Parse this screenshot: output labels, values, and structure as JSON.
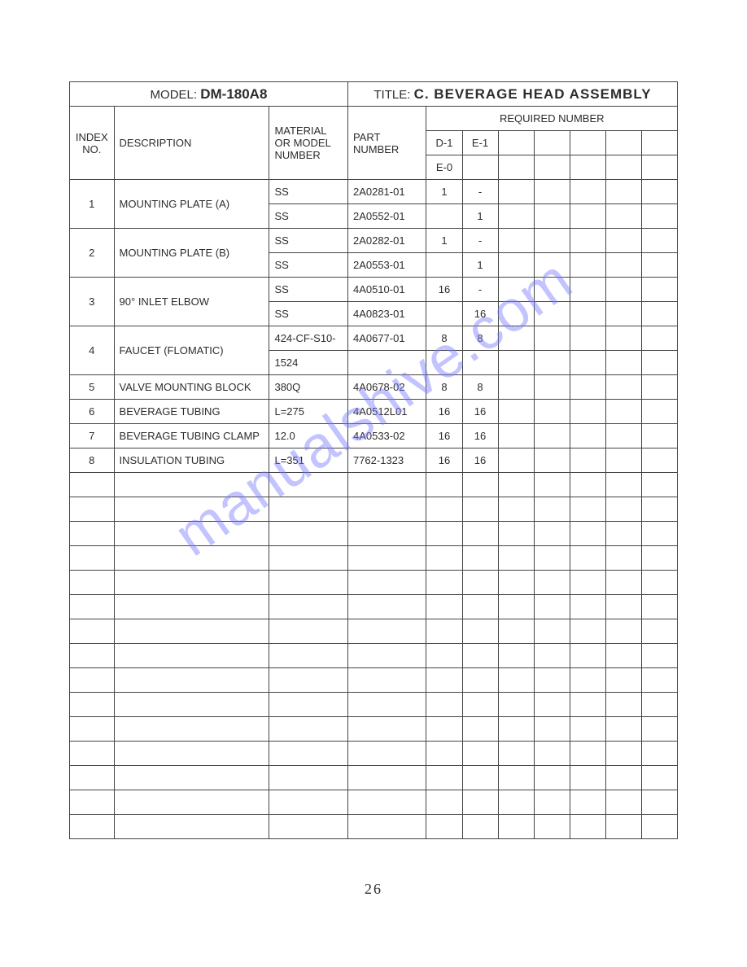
{
  "header": {
    "model_label": "MODEL:",
    "model_value": "DM-180A8",
    "title_label": "TITLE:",
    "title_value": "C. BEVERAGE HEAD ASSEMBLY"
  },
  "columns": {
    "index": "INDEX NO.",
    "description": "DESCRIPTION",
    "material": "MATERIAL OR MODEL NUMBER",
    "part": "PART NUMBER",
    "required": "REQUIRED NUMBER",
    "req_sub": [
      "D-1",
      "E-1",
      "",
      "",
      "",
      "",
      ""
    ],
    "req_sub2": [
      "E-0",
      "",
      "",
      "",
      "",
      "",
      ""
    ]
  },
  "rows": [
    {
      "idx": "1",
      "desc": "MOUNTING PLATE (A)",
      "mat": "SS",
      "part": "2A0281-01",
      "req": [
        "1",
        "-",
        "",
        "",
        "",
        "",
        ""
      ]
    },
    {
      "idx": "",
      "desc": "",
      "mat": "SS",
      "part": "2A0552-01",
      "req": [
        "",
        "1",
        "",
        "",
        "",
        "",
        ""
      ]
    },
    {
      "idx": "2",
      "desc": "MOUNTING PLATE (B)",
      "mat": "SS",
      "part": "2A0282-01",
      "req": [
        "1",
        "-",
        "",
        "",
        "",
        "",
        ""
      ]
    },
    {
      "idx": "",
      "desc": "",
      "mat": "SS",
      "part": "2A0553-01",
      "req": [
        "",
        "1",
        "",
        "",
        "",
        "",
        ""
      ]
    },
    {
      "idx": "3",
      "desc": "90° INLET ELBOW",
      "mat": "SS",
      "part": "4A0510-01",
      "req": [
        "16",
        "-",
        "",
        "",
        "",
        "",
        ""
      ]
    },
    {
      "idx": "",
      "desc": "",
      "mat": "SS",
      "part": "4A0823-01",
      "req": [
        "",
        "16",
        "",
        "",
        "",
        "",
        ""
      ]
    },
    {
      "idx": "4",
      "desc": "FAUCET (FLOMATIC)",
      "mat": "424-CF-S10-",
      "part": "4A0677-01",
      "req": [
        "8",
        "8",
        "",
        "",
        "",
        "",
        ""
      ]
    },
    {
      "idx": "",
      "desc": "",
      "mat": "1524",
      "part": "",
      "req": [
        "",
        "",
        "",
        "",
        "",
        "",
        ""
      ]
    },
    {
      "idx": "5",
      "desc": "VALVE MOUNTING BLOCK",
      "mat": "380Q",
      "part": "4A0678-02",
      "req": [
        "8",
        "8",
        "",
        "",
        "",
        "",
        ""
      ]
    },
    {
      "idx": "6",
      "desc": "BEVERAGE TUBING",
      "mat": "L=275",
      "part": "4A0512L01",
      "req": [
        "16",
        "16",
        "",
        "",
        "",
        "",
        ""
      ]
    },
    {
      "idx": "7",
      "desc": "BEVERAGE TUBING CLAMP",
      "mat": "12.0",
      "part": "4A0533-02",
      "req": [
        "16",
        "16",
        "",
        "",
        "",
        "",
        ""
      ]
    },
    {
      "idx": "8",
      "desc": "INSULATION TUBING",
      "mat": "L=351",
      "part": "7762-1323",
      "req": [
        "16",
        "16",
        "",
        "",
        "",
        "",
        ""
      ]
    }
  ],
  "empty_rows": 15,
  "page_number": "26",
  "watermark": "manualshive.com",
  "style": {
    "page_bg": "#ffffff",
    "border_color": "#444444",
    "text_color": "#2c2c2c",
    "watermark_color": "#7b7bff",
    "watermark_opacity": 0.45,
    "font_size_body": 13,
    "font_size_header": 15,
    "font_size_model": 17
  }
}
